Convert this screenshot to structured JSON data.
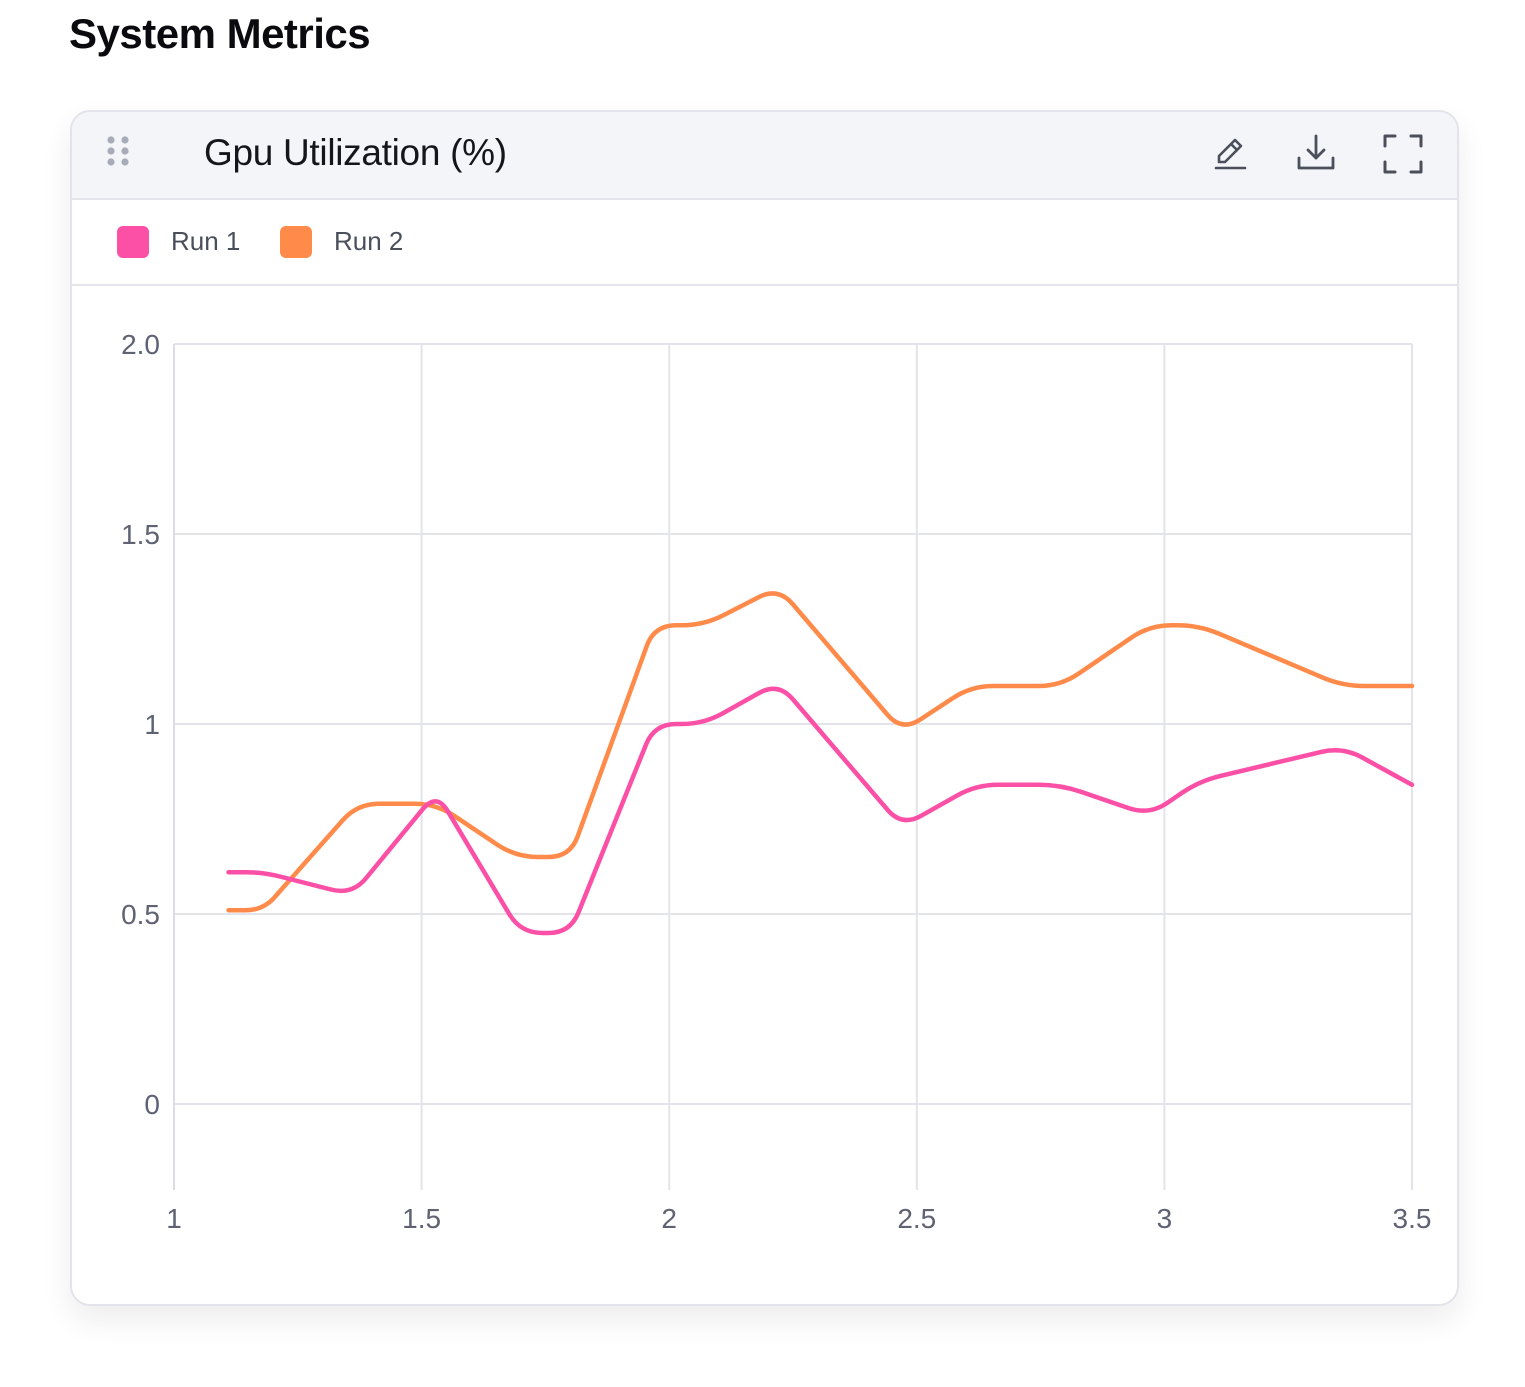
{
  "page": {
    "section_title": "System Metrics"
  },
  "panel": {
    "title": "Gpu Utilization (%)",
    "icons": {
      "drag": "drag-handle-icon",
      "edit": "edit-icon",
      "download": "download-icon",
      "fullscreen": "fullscreen-icon"
    }
  },
  "legend": [
    {
      "label": "Run 1",
      "color": "#fc4fa6"
    },
    {
      "label": "Run 2",
      "color": "#ff8a4a"
    }
  ],
  "chart_data": {
    "type": "line",
    "title": "Gpu Utilization (%)",
    "xlabel": "",
    "ylabel": "",
    "xlim": [
      1,
      3.5
    ],
    "ylim": [
      -0.22,
      2.0
    ],
    "x_ticks": [
      1,
      1.5,
      2,
      2.5,
      3,
      3.5
    ],
    "x_tick_labels": [
      "1",
      "1.5",
      "2",
      "2.5",
      "3",
      "3.5"
    ],
    "y_ticks": [
      0,
      0.5,
      1,
      1.5,
      2.0
    ],
    "y_tick_labels": [
      "0",
      "0.5",
      "1",
      "1.5",
      "2.0"
    ],
    "grid": true,
    "legend_position": "top-left",
    "series": [
      {
        "name": "Run 1",
        "color": "#fc4fa6",
        "x": [
          1.11,
          1.18,
          1.36,
          1.53,
          1.7,
          1.8,
          1.97,
          2.07,
          2.22,
          2.47,
          2.62,
          2.79,
          2.97,
          3.07,
          3.36,
          3.5
        ],
        "y": [
          0.61,
          0.61,
          0.55,
          0.82,
          0.45,
          0.45,
          1.0,
          1.0,
          1.11,
          0.73,
          0.84,
          0.84,
          0.76,
          0.85,
          0.94,
          0.84
        ]
      },
      {
        "name": "Run 2",
        "color": "#ff8a4a",
        "x": [
          1.11,
          1.18,
          1.37,
          1.53,
          1.69,
          1.8,
          1.97,
          2.07,
          2.22,
          2.47,
          2.61,
          2.79,
          2.97,
          3.07,
          3.36,
          3.5
        ],
        "y": [
          0.51,
          0.51,
          0.79,
          0.79,
          0.65,
          0.65,
          1.26,
          1.26,
          1.36,
          0.98,
          1.1,
          1.1,
          1.26,
          1.26,
          1.1,
          1.1
        ]
      }
    ]
  }
}
